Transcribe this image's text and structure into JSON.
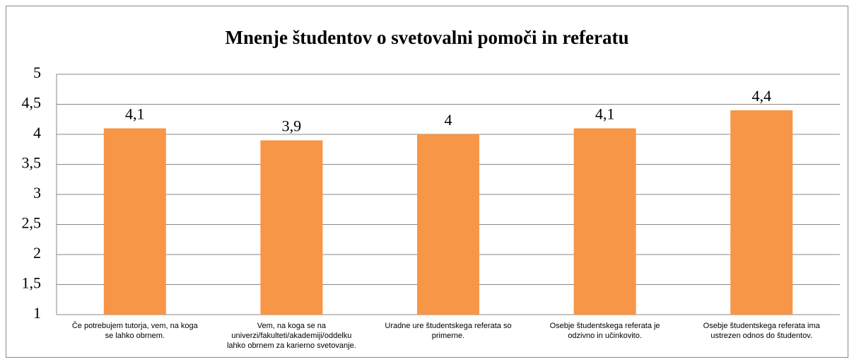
{
  "chart_data": {
    "type": "bar",
    "title": "Mnenje študentov o svetovalni pomoči in referatu",
    "categories": [
      "Če potrebujem tutorja, vem, na koga se lahko obrnem.",
      "Vem, na koga se na univerzi/fakulteti/akademiji/oddelku lahko obrnem za karierno svetovanje.",
      "Uradne ure študentskega referata so primerne.",
      "Osebje študentskega referata je odzivno in učinkovito.",
      "Osebje študentskega referata ima ustrezen odnos do študentov."
    ],
    "values": [
      4.1,
      3.9,
      4,
      4.1,
      4.4
    ],
    "value_labels": [
      "4,1",
      "3,9",
      "4",
      "4,1",
      "4,4"
    ],
    "color": "#f79646",
    "ylim": [
      1,
      5
    ],
    "yticks": [
      1,
      {
        "value": 1.5,
        "label": "1,5"
      },
      2,
      {
        "value": 2.5,
        "label": "2,5"
      },
      3,
      {
        "value": 3.5,
        "label": "3,5"
      },
      4,
      {
        "value": 4.5,
        "label": "4,5"
      },
      5
    ],
    "grid": true
  }
}
